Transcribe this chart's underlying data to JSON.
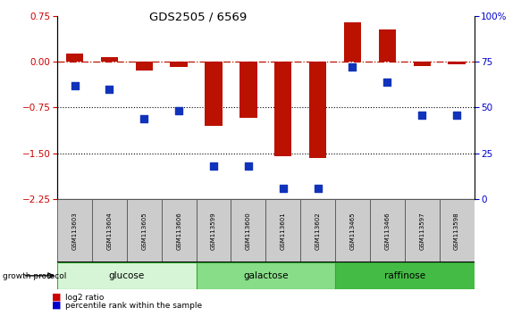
{
  "title": "GDS2505 / 6569",
  "samples": [
    "GSM113603",
    "GSM113604",
    "GSM113605",
    "GSM113606",
    "GSM113599",
    "GSM113600",
    "GSM113601",
    "GSM113602",
    "GSM113465",
    "GSM113466",
    "GSM113597",
    "GSM113598"
  ],
  "log2_ratio": [
    0.13,
    0.08,
    -0.15,
    -0.08,
    -1.05,
    -0.92,
    -1.55,
    -1.58,
    0.65,
    0.52,
    -0.07,
    -0.05
  ],
  "percentile_rank": [
    62,
    60,
    44,
    48,
    18,
    18,
    6,
    6,
    72,
    64,
    46,
    46
  ],
  "groups": [
    {
      "label": "glucose",
      "start": 0,
      "end": 3,
      "color": "#d6f5d6"
    },
    {
      "label": "galactose",
      "start": 4,
      "end": 7,
      "color": "#88dd88"
    },
    {
      "label": "raffinose",
      "start": 8,
      "end": 11,
      "color": "#44bb44"
    }
  ],
  "ylim_left": [
    -2.25,
    0.75
  ],
  "ylim_right": [
    0,
    100
  ],
  "yticks_left": [
    -2.25,
    -1.5,
    -0.75,
    0,
    0.75
  ],
  "yticks_right": [
    0,
    25,
    50,
    75,
    100
  ],
  "dotted_lines": [
    -0.75,
    -1.5
  ],
  "bar_color": "#bb1100",
  "dot_color": "#1133bb",
  "bar_width": 0.5,
  "dot_size": 28,
  "left_axis_color": "#cc0000",
  "right_axis_color": "#0000cc",
  "legend_items": [
    {
      "label": "log2 ratio",
      "color": "#cc0000"
    },
    {
      "label": "percentile rank within the sample",
      "color": "#0000cc"
    }
  ],
  "growth_protocol_label": "growth protocol",
  "figsize": [
    5.83,
    3.54
  ],
  "dpi": 100
}
